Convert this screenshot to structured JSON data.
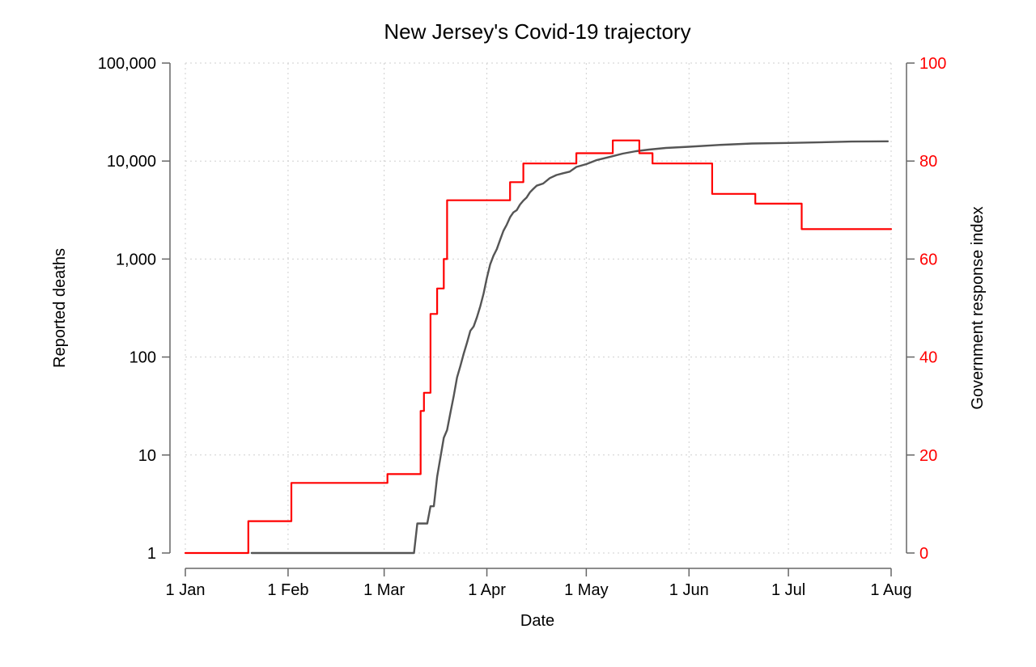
{
  "chart_data": {
    "type": "line",
    "title": "New Jersey's Covid-19 trajectory",
    "xlabel": "Date",
    "ylabel": "Reported deaths",
    "y2label": "Government response index",
    "x_range": [
      "2020-01-01",
      "2020-08-01"
    ],
    "x_ticks": [
      {
        "date": "2020-01-01",
        "label": "1 Jan"
      },
      {
        "date": "2020-02-01",
        "label": "1 Feb"
      },
      {
        "date": "2020-03-01",
        "label": "1 Mar"
      },
      {
        "date": "2020-04-01",
        "label": "1 Apr"
      },
      {
        "date": "2020-05-01",
        "label": "1 May"
      },
      {
        "date": "2020-06-01",
        "label": "1 Jun"
      },
      {
        "date": "2020-07-01",
        "label": "1 Jul"
      },
      {
        "date": "2020-08-01",
        "label": "1 Aug"
      }
    ],
    "y_scale": "log",
    "ylim": [
      1,
      100000
    ],
    "y_ticks": [
      {
        "value": 1,
        "label": "1"
      },
      {
        "value": 10,
        "label": "10"
      },
      {
        "value": 100,
        "label": "100"
      },
      {
        "value": 1000,
        "label": "1,000"
      },
      {
        "value": 10000,
        "label": "10,000"
      },
      {
        "value": 100000,
        "label": "100,000"
      }
    ],
    "y2lim": [
      0,
      100
    ],
    "y2_ticks": [
      {
        "value": 0,
        "label": "0"
      },
      {
        "value": 20,
        "label": "20"
      },
      {
        "value": 40,
        "label": "40"
      },
      {
        "value": 60,
        "label": "60"
      },
      {
        "value": 80,
        "label": "80"
      },
      {
        "value": 100,
        "label": "100"
      }
    ],
    "grid": true,
    "colors": {
      "deaths": "#555555",
      "response": "#ff0000",
      "axis": "#666666"
    },
    "series": [
      {
        "axis": "left",
        "color": "#555555",
        "points": [
          [
            "2020-01-21",
            1
          ],
          [
            "2020-03-10",
            1
          ],
          [
            "2020-03-11",
            2
          ],
          [
            "2020-03-14",
            2
          ],
          [
            "2020-03-15",
            3
          ],
          [
            "2020-03-16",
            3
          ],
          [
            "2020-03-17",
            6
          ],
          [
            "2020-03-19",
            15
          ],
          [
            "2020-03-20",
            18
          ],
          [
            "2020-03-21",
            27
          ],
          [
            "2020-03-22",
            40
          ],
          [
            "2020-03-23",
            62
          ],
          [
            "2020-03-24",
            81
          ],
          [
            "2020-03-25",
            108
          ],
          [
            "2020-03-26",
            140
          ],
          [
            "2020-03-27",
            185
          ],
          [
            "2020-03-28",
            205
          ],
          [
            "2020-03-29",
            255
          ],
          [
            "2020-03-30",
            330
          ],
          [
            "2020-03-31",
            445
          ],
          [
            "2020-04-01",
            640
          ],
          [
            "2020-04-02",
            880
          ],
          [
            "2020-04-03",
            1080
          ],
          [
            "2020-04-04",
            1260
          ],
          [
            "2020-04-05",
            1570
          ],
          [
            "2020-04-06",
            1940
          ],
          [
            "2020-04-07",
            2240
          ],
          [
            "2020-04-08",
            2670
          ],
          [
            "2020-04-09",
            2990
          ],
          [
            "2020-04-10",
            3150
          ],
          [
            "2020-04-11",
            3600
          ],
          [
            "2020-04-12",
            3950
          ],
          [
            "2020-04-13",
            4250
          ],
          [
            "2020-04-14",
            4800
          ],
          [
            "2020-04-15",
            5200
          ],
          [
            "2020-04-16",
            5600
          ],
          [
            "2020-04-18",
            5900
          ],
          [
            "2020-04-20",
            6700
          ],
          [
            "2020-04-22",
            7200
          ],
          [
            "2020-04-24",
            7500
          ],
          [
            "2020-04-26",
            7800
          ],
          [
            "2020-04-28",
            8700
          ],
          [
            "2020-05-01",
            9300
          ],
          [
            "2020-05-04",
            10200
          ],
          [
            "2020-05-08",
            11000
          ],
          [
            "2020-05-12",
            11900
          ],
          [
            "2020-05-16",
            12600
          ],
          [
            "2020-05-20",
            13100
          ],
          [
            "2020-05-25",
            13600
          ],
          [
            "2020-06-01",
            14000
          ],
          [
            "2020-06-10",
            14600
          ],
          [
            "2020-06-20",
            15100
          ],
          [
            "2020-07-01",
            15300
          ],
          [
            "2020-07-10",
            15500
          ],
          [
            "2020-07-20",
            15800
          ],
          [
            "2020-07-31",
            15900
          ]
        ]
      },
      {
        "axis": "right",
        "color": "#ff0000",
        "step": true,
        "points": [
          [
            "2020-01-01",
            0
          ],
          [
            "2020-01-20",
            6.5
          ],
          [
            "2020-02-02",
            14.3
          ],
          [
            "2020-03-02",
            16.1
          ],
          [
            "2020-03-12",
            29
          ],
          [
            "2020-03-13",
            32.7
          ],
          [
            "2020-03-15",
            48.8
          ],
          [
            "2020-03-17",
            54
          ],
          [
            "2020-03-19",
            60
          ],
          [
            "2020-03-20",
            72
          ],
          [
            "2020-04-08",
            75.7
          ],
          [
            "2020-04-12",
            79.5
          ],
          [
            "2020-04-28",
            81.6
          ],
          [
            "2020-05-09",
            84.2
          ],
          [
            "2020-05-17",
            81.6
          ],
          [
            "2020-05-21",
            79.5
          ],
          [
            "2020-06-08",
            73.3
          ],
          [
            "2020-06-21",
            71.3
          ],
          [
            "2020-07-05",
            66.1
          ],
          [
            "2020-08-01",
            66.1
          ]
        ]
      }
    ]
  }
}
